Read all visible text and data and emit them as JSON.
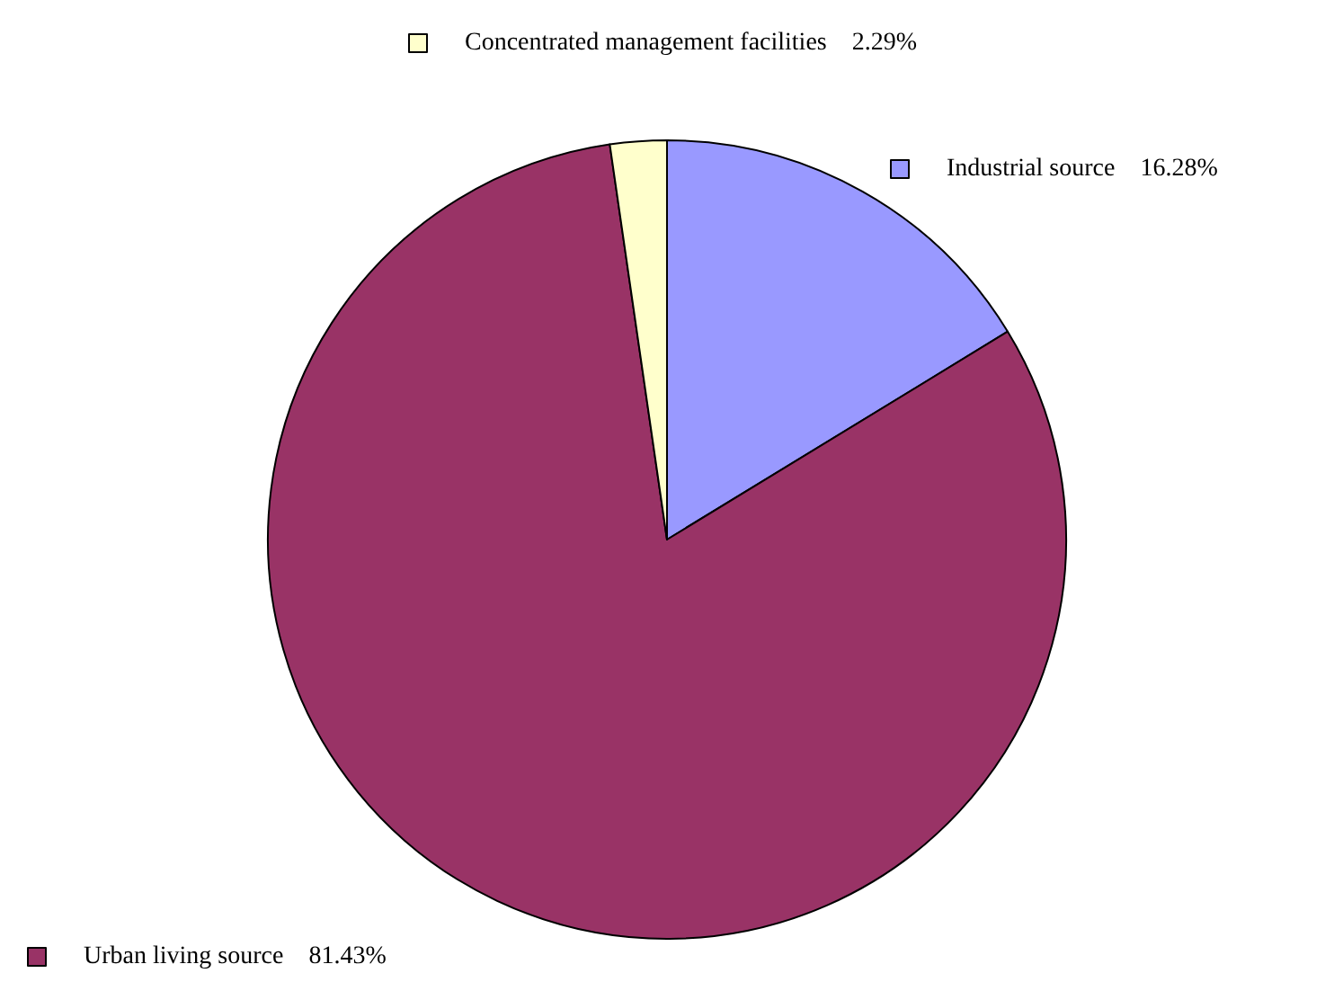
{
  "chart_data": {
    "type": "pie",
    "categories": [
      "Industrial source",
      "Urban living source",
      "Concentrated management facilities"
    ],
    "values": [
      16.28,
      81.43,
      2.29
    ],
    "value_labels": [
      "16.28%",
      "81.43%",
      "2.29%"
    ],
    "colors": [
      "#9999ff",
      "#993366",
      "#ffffcc"
    ],
    "legend": "top left"
  }
}
